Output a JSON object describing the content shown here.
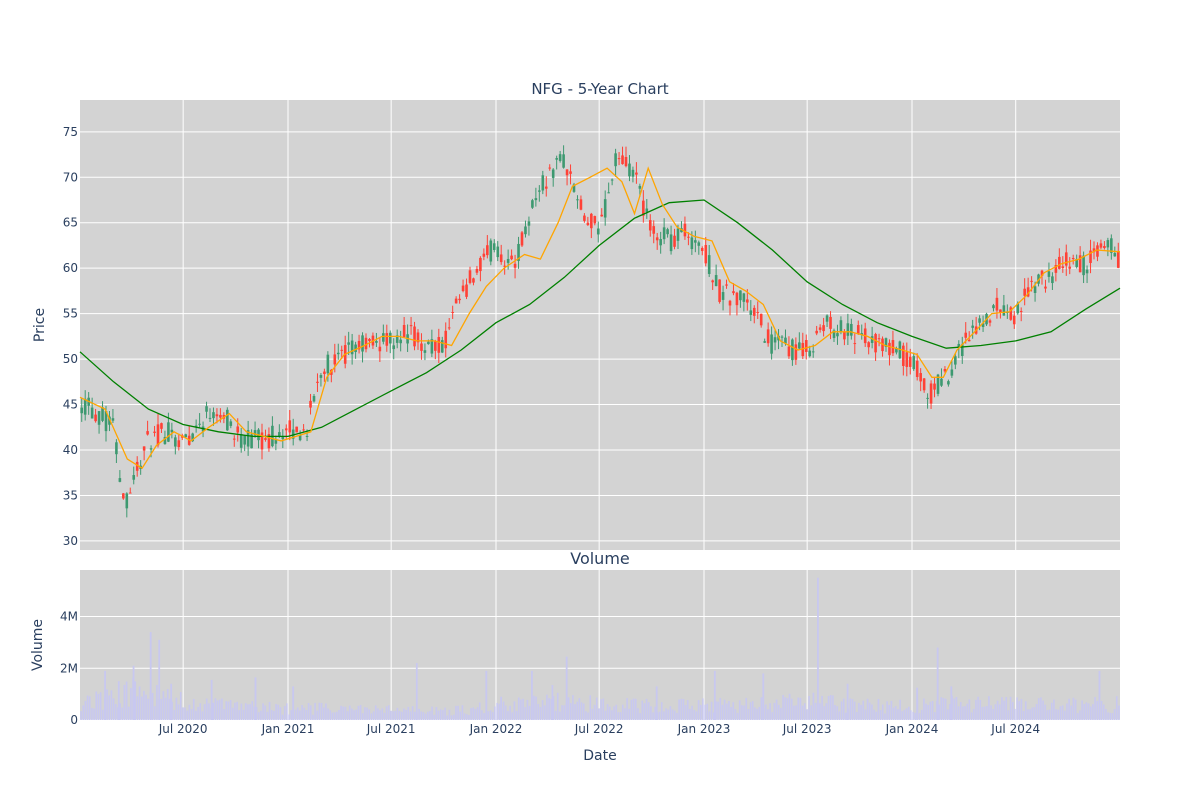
{
  "chart_data": [
    {
      "type": "candlestick",
      "title": "NFG - 5-Year Chart",
      "xlabel": "",
      "ylabel": "Price",
      "ylim": [
        29,
        78.5
      ],
      "yticks": [
        30,
        35,
        40,
        45,
        50,
        55,
        60,
        65,
        70,
        75
      ],
      "xlim": [
        "2020-01-02",
        "2024-12-31"
      ],
      "xticks": [
        "2020-07-01",
        "2021-01-01",
        "2021-07-01",
        "2022-01-01",
        "2022-07-01",
        "2023-01-01",
        "2023-07-01",
        "2024-01-01",
        "2024-07-01"
      ],
      "grid": true,
      "legend": "none",
      "colors": {
        "background": "#d3d3d3",
        "grid": "#ffffff",
        "increasing": "#3d9970",
        "decreasing": "#ff4136",
        "ma_short": "#ffa500",
        "ma_long": "#008000"
      },
      "close_series": {
        "x": [
          "2020-01-02",
          "2020-02-01",
          "2020-03-01",
          "2020-03-20",
          "2020-04-05",
          "2020-05-01",
          "2020-06-01",
          "2020-07-01",
          "2020-08-01",
          "2020-09-01",
          "2020-10-01",
          "2020-11-01",
          "2020-12-01",
          "2021-01-01",
          "2021-02-01",
          "2021-03-01",
          "2021-04-01",
          "2021-05-01",
          "2021-06-01",
          "2021-07-01",
          "2021-08-01",
          "2021-09-01",
          "2021-10-01",
          "2021-11-01",
          "2021-12-01",
          "2022-01-01",
          "2022-02-01",
          "2022-03-01",
          "2022-04-01",
          "2022-05-01",
          "2022-06-01",
          "2022-07-01",
          "2022-08-01",
          "2022-09-01",
          "2022-10-01",
          "2022-11-01",
          "2022-12-01",
          "2023-01-01",
          "2023-02-01",
          "2023-03-01",
          "2023-04-01",
          "2023-05-01",
          "2023-06-01",
          "2023-07-01",
          "2023-08-01",
          "2023-09-01",
          "2023-10-01",
          "2023-11-01",
          "2023-12-01",
          "2024-01-01",
          "2024-02-01",
          "2024-03-01",
          "2024-04-01",
          "2024-05-01",
          "2024-06-01",
          "2024-07-01",
          "2024-08-01",
          "2024-09-01",
          "2024-10-01",
          "2024-11-01",
          "2024-12-01",
          "2024-12-31"
        ],
        "y": [
          45.5,
          44,
          42.5,
          34,
          37,
          41,
          42,
          41,
          43,
          45,
          41.5,
          41,
          41.5,
          42,
          42,
          49,
          50,
          51,
          52,
          52,
          53,
          51.5,
          51.5,
          57,
          60,
          62.5,
          60,
          66,
          70,
          72,
          66,
          64,
          72,
          70,
          64,
          63,
          64,
          62,
          57,
          57,
          55,
          51.5,
          51,
          51,
          54,
          53,
          52.5,
          51.5,
          51,
          50,
          46,
          48,
          52,
          54,
          56,
          55,
          58,
          59,
          61,
          60,
          63,
          61
        ]
      },
      "ma_short": {
        "x": [
          "2020-01-02",
          "2020-02-15",
          "2020-03-25",
          "2020-04-20",
          "2020-05-15",
          "2020-06-15",
          "2020-07-15",
          "2020-08-15",
          "2020-09-20",
          "2020-10-20",
          "2020-11-20",
          "2020-12-20",
          "2021-01-15",
          "2021-02-10",
          "2021-03-10",
          "2021-04-10",
          "2021-05-15",
          "2021-06-15",
          "2021-07-15",
          "2021-08-15",
          "2021-09-15",
          "2021-10-15",
          "2021-11-15",
          "2021-12-15",
          "2022-01-15",
          "2022-02-20",
          "2022-03-20",
          "2022-04-20",
          "2022-05-15",
          "2022-06-15",
          "2022-07-15",
          "2022-08-10",
          "2022-09-01",
          "2022-09-25",
          "2022-10-20",
          "2022-11-15",
          "2022-12-15",
          "2023-01-15",
          "2023-02-15",
          "2023-03-15",
          "2023-04-15",
          "2023-05-15",
          "2023-06-15",
          "2023-07-15",
          "2023-08-15",
          "2023-09-15",
          "2023-10-15",
          "2023-11-15",
          "2023-12-15",
          "2024-01-10",
          "2024-02-05",
          "2024-02-25",
          "2024-03-20",
          "2024-04-20",
          "2024-05-20",
          "2024-06-20",
          "2024-07-20",
          "2024-08-20",
          "2024-09-20",
          "2024-10-20",
          "2024-11-20",
          "2024-12-31"
        ],
        "y": [
          45.8,
          44.5,
          39,
          38,
          40.5,
          42,
          41,
          42.5,
          44,
          42,
          41.5,
          41,
          41.5,
          42,
          48,
          50.5,
          51.5,
          52.5,
          52.5,
          52,
          52,
          51.5,
          55,
          58,
          60,
          61.5,
          61,
          65,
          69,
          70,
          71,
          69.5,
          66,
          71,
          67,
          64.5,
          63.5,
          63,
          58.5,
          57.5,
          56,
          52,
          51,
          51.5,
          53,
          53,
          52.5,
          51.5,
          51,
          50.5,
          48,
          48,
          51,
          53,
          55,
          55.2,
          57,
          59.5,
          60.5,
          61,
          62,
          61.8
        ]
      },
      "ma_long": {
        "x": [
          "2020-01-02",
          "2020-03-01",
          "2020-05-01",
          "2020-07-01",
          "2020-09-01",
          "2020-11-01",
          "2021-01-01",
          "2021-03-01",
          "2021-05-01",
          "2021-07-01",
          "2021-09-01",
          "2021-11-01",
          "2022-01-01",
          "2022-03-01",
          "2022-05-01",
          "2022-07-01",
          "2022-09-01",
          "2022-11-01",
          "2023-01-01",
          "2023-03-01",
          "2023-05-01",
          "2023-07-01",
          "2023-09-01",
          "2023-11-01",
          "2024-01-01",
          "2024-03-01",
          "2024-05-01",
          "2024-07-01",
          "2024-09-01",
          "2024-11-01",
          "2024-12-31"
        ],
        "y": [
          50.8,
          47.5,
          44.5,
          42.8,
          42,
          41.5,
          41.5,
          42.5,
          44.5,
          46.5,
          48.5,
          51,
          54,
          56,
          59,
          62.5,
          65.5,
          67.2,
          67.5,
          65,
          62,
          58.5,
          56,
          54,
          52.5,
          51.2,
          51.5,
          52,
          53,
          55.5,
          57.8
        ]
      }
    },
    {
      "type": "bar",
      "title": "Volume",
      "xlabel": "Date",
      "ylabel": "Volume",
      "ylim": [
        0,
        5800000
      ],
      "yticks": [
        0,
        2000000,
        4000000
      ],
      "ytick_labels": [
        "0",
        "2M",
        "4M"
      ],
      "xlim": [
        "2020-01-02",
        "2024-12-31"
      ],
      "xticks": [
        "2020-07-01",
        "2021-01-01",
        "2021-07-01",
        "2022-01-01",
        "2022-07-01",
        "2023-01-01",
        "2023-07-01",
        "2024-01-01",
        "2024-07-01"
      ],
      "xtick_labels": [
        "Jul 2020",
        "Jan 2021",
        "Jul 2021",
        "Jan 2022",
        "Jul 2022",
        "Jan 2023",
        "Jul 2023",
        "Jan 2024",
        "Jul 2024"
      ],
      "grid": true,
      "bar_color": "#c8c8f0",
      "background": "#d3d3d3",
      "spikes": {
        "x": [
          "2020-02-15",
          "2020-03-10",
          "2020-04-05",
          "2020-05-05",
          "2020-05-20",
          "2020-06-10",
          "2020-08-20",
          "2020-11-05",
          "2021-01-10",
          "2021-08-15",
          "2021-12-15",
          "2022-01-10",
          "2022-03-05",
          "2022-04-10",
          "2022-05-05",
          "2022-10-10",
          "2023-01-20",
          "2023-04-15",
          "2023-07-20",
          "2023-09-10",
          "2024-01-10",
          "2024-02-15",
          "2024-03-10",
          "2024-11-25"
        ],
        "values": [
          1900000,
          1500000,
          2100000,
          3400000,
          3100000,
          1400000,
          1550000,
          1650000,
          1300000,
          2200000,
          1900000,
          900000,
          1900000,
          1350000,
          2450000,
          1300000,
          1900000,
          1800000,
          5500000,
          1400000,
          1250000,
          2800000,
          1300000,
          1900000
        ]
      },
      "baseline": {
        "x": [
          "2020-01-02",
          "2020-04-01",
          "2020-07-01",
          "2020-10-01",
          "2021-01-01",
          "2021-04-01",
          "2021-07-01",
          "2021-10-01",
          "2022-01-01",
          "2022-04-01",
          "2022-07-01",
          "2022-10-01",
          "2023-01-01",
          "2023-04-01",
          "2023-07-01",
          "2023-10-01",
          "2024-01-01",
          "2024-04-01",
          "2024-07-01",
          "2024-10-01",
          "2024-12-31"
        ],
        "values": [
          600000,
          1100000,
          700000,
          500000,
          450000,
          420000,
          380000,
          350000,
          500000,
          700000,
          600000,
          550000,
          550000,
          600000,
          700000,
          550000,
          550000,
          650000,
          600000,
          550000,
          600000
        ]
      }
    }
  ]
}
